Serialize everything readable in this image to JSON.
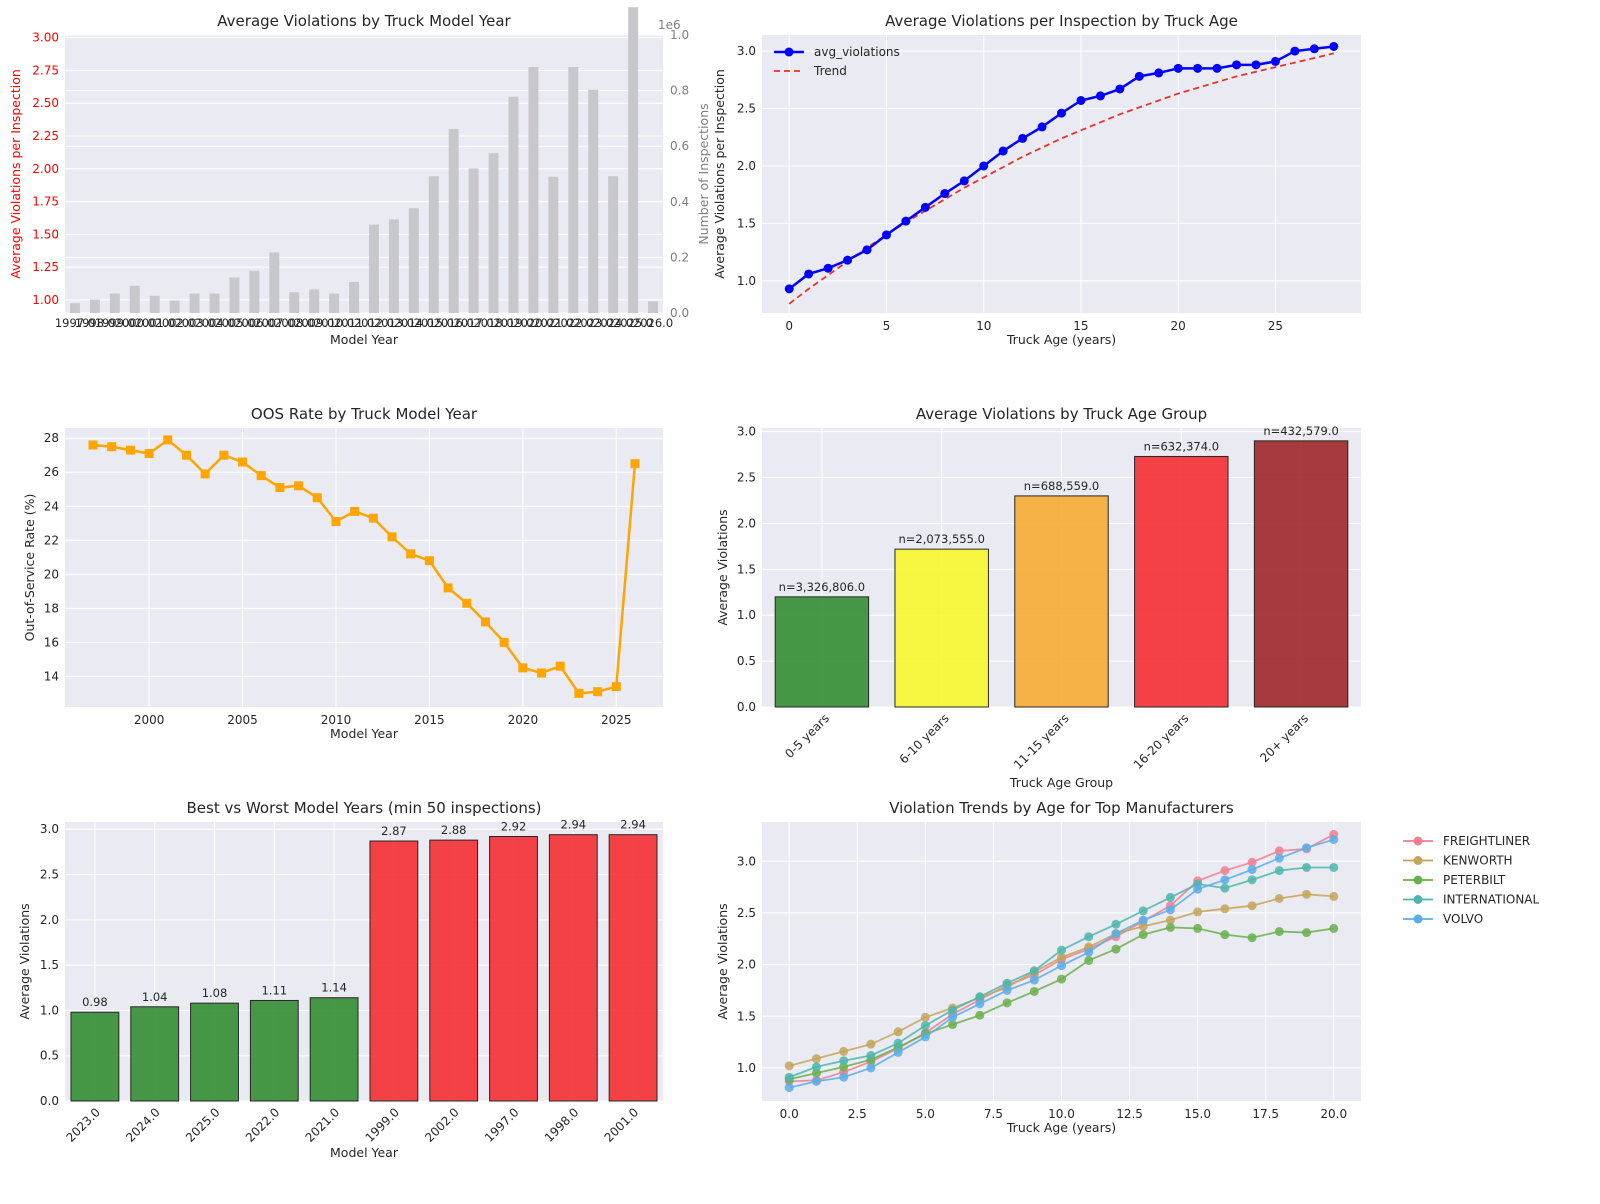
{
  "charts": [
    {
      "id": "p1",
      "title": "Average Violations by Truck Model Year",
      "xlabel": "Model Year",
      "ylabel": "Average Violations per Inspection",
      "ylabel2": "Number of Inspections",
      "offset2": "1e6"
    },
    {
      "id": "p2",
      "title": "Average Violations per Inspection by Truck Age",
      "xlabel": "Truck Age (years)",
      "ylabel": "Average Violations per Inspection",
      "legend": [
        "avg_violations",
        "Trend"
      ]
    },
    {
      "id": "p3",
      "title": "OOS Rate by Truck Model Year",
      "xlabel": "Model Year",
      "ylabel": "Out-of-Service Rate (%)"
    },
    {
      "id": "p4",
      "title": "Average Violations by Truck Age Group",
      "xlabel": "Truck Age Group",
      "ylabel": "Average Violations"
    },
    {
      "id": "p5",
      "title": "Best vs Worst Model Years (min 50 inspections)",
      "xlabel": "Model Year",
      "ylabel": "Average Violations"
    },
    {
      "id": "p6",
      "title": "Violation Trends by Age for Top Manufacturers",
      "xlabel": "Truck Age (years)",
      "ylabel": "Average Violations"
    }
  ],
  "chart_data": [
    {
      "type": "bar",
      "title": "Average Violations by Truck Model Year",
      "xlabel": "Model Year",
      "ylabel": "Average Violations per Inspection",
      "ylabel2": "Number of Inspections",
      "categories": [
        "1997.0",
        "1998.0",
        "1999.0",
        "2000.0",
        "2001.0",
        "2002.0",
        "2003.0",
        "2004.0",
        "2005.0",
        "2006.0",
        "2007.0",
        "2008.0",
        "2009.0",
        "2010.0",
        "2011.0",
        "2012.0",
        "2013.0",
        "2014.0",
        "2015.0",
        "2016.0",
        "2017.0",
        "2018.0",
        "2019.0",
        "2020.0",
        "2021.0",
        "2022.0",
        "2023.0",
        "2024.0",
        "2025.0",
        "2026.0"
      ],
      "series": [
        {
          "name": "Number of Inspections",
          "axis": "right",
          "values": [
            35000,
            48000,
            70000,
            98000,
            62000,
            45000,
            70000,
            70000,
            128000,
            152000,
            218000,
            75000,
            85000,
            70000,
            112000,
            318000,
            337000,
            377000,
            492000,
            662000,
            520000,
            575000,
            778000,
            885000,
            490000,
            885000,
            803000,
            492000,
            1100000,
            42000
          ]
        }
      ],
      "ylim": [
        0.9,
        3.02
      ],
      "ylim2": [
        0,
        1.0
      ],
      "yticks": [
        1.0,
        1.25,
        1.5,
        1.75,
        2.0,
        2.25,
        2.5,
        2.75,
        3.0
      ],
      "yticks2": [
        0.0,
        0.2,
        0.4,
        0.6,
        0.8,
        1.0
      ],
      "colors": {
        "left_axis": "#ff0000",
        "bars": "#c8c8cc",
        "right_axis": "#808080"
      }
    },
    {
      "type": "line",
      "title": "Average Violations per Inspection by Truck Age",
      "xlabel": "Truck Age (years)",
      "ylabel": "Average Violations per Inspection",
      "x": [
        0,
        1,
        2,
        3,
        4,
        5,
        6,
        7,
        8,
        9,
        10,
        11,
        12,
        13,
        14,
        15,
        16,
        17,
        18,
        19,
        20,
        21,
        22,
        23,
        24,
        25,
        26,
        27,
        28
      ],
      "series": [
        {
          "name": "avg_violations",
          "values": [
            0.93,
            1.06,
            1.11,
            1.18,
            1.27,
            1.4,
            1.52,
            1.64,
            1.76,
            1.87,
            2.0,
            2.13,
            2.24,
            2.34,
            2.46,
            2.57,
            2.61,
            2.67,
            2.78,
            2.81,
            2.85,
            2.85,
            2.85,
            2.88,
            2.88,
            2.91,
            3.0,
            3.02,
            3.04
          ],
          "color": "#0000ff",
          "marker": "circle"
        },
        {
          "name": "Trend",
          "values": [
            0.8,
            0.93,
            1.05,
            1.17,
            1.29,
            1.4,
            1.51,
            1.61,
            1.71,
            1.81,
            1.9,
            1.99,
            2.08,
            2.16,
            2.24,
            2.31,
            2.38,
            2.45,
            2.51,
            2.57,
            2.63,
            2.68,
            2.73,
            2.78,
            2.82,
            2.86,
            2.9,
            2.94,
            2.98
          ],
          "color": "#e8322b",
          "style": "dashed"
        }
      ],
      "xlim": [
        -1.4,
        29.4
      ],
      "ylim": [
        0.72,
        3.14
      ],
      "xticks": [
        0,
        5,
        10,
        15,
        20,
        25
      ],
      "yticks": [
        1.0,
        1.5,
        2.0,
        2.5,
        3.0
      ],
      "legend": "top-left"
    },
    {
      "type": "line",
      "title": "OOS Rate by Truck Model Year",
      "xlabel": "Model Year",
      "ylabel": "Out-of-Service Rate (%)",
      "x": [
        1997,
        1998,
        1999,
        2000,
        2001,
        2002,
        2003,
        2004,
        2005,
        2006,
        2007,
        2008,
        2009,
        2010,
        2011,
        2012,
        2013,
        2014,
        2015,
        2016,
        2017,
        2018,
        2019,
        2020,
        2021,
        2022,
        2023,
        2024,
        2025,
        2026
      ],
      "series": [
        {
          "name": "OOS Rate",
          "values": [
            27.6,
            27.5,
            27.3,
            27.1,
            27.9,
            27.0,
            25.9,
            27.0,
            26.6,
            25.8,
            25.1,
            25.2,
            24.5,
            23.1,
            23.7,
            23.3,
            22.2,
            21.2,
            20.8,
            19.2,
            18.3,
            17.2,
            16.0,
            14.5,
            14.2,
            14.6,
            13.0,
            13.1,
            13.4,
            26.5
          ],
          "color": "#ffa500",
          "marker": "square"
        }
      ],
      "xlim": [
        1995.5,
        2027.5
      ],
      "ylim": [
        12.2,
        28.6
      ],
      "xticks": [
        2000,
        2005,
        2010,
        2015,
        2020,
        2025
      ],
      "yticks": [
        14,
        16,
        18,
        20,
        22,
        24,
        26,
        28
      ]
    },
    {
      "type": "bar",
      "title": "Average Violations by Truck Age Group",
      "xlabel": "Truck Age Group",
      "ylabel": "Average Violations",
      "categories": [
        "0-5 years",
        "6-10 years",
        "11-15 years",
        "16-20 years",
        "20+ years"
      ],
      "values": [
        1.2,
        1.72,
        2.3,
        2.73,
        2.9
      ],
      "data_labels": [
        "n=3,326,806.0",
        "n=2,073,555.0",
        "n=688,559.0",
        "n=632,374.0",
        "n=432,579.0"
      ],
      "colors": [
        "#2e8b2e",
        "#f7f728",
        "#f5aa2d",
        "#f5292e",
        "#9b2222"
      ],
      "ylim": [
        0,
        3.04
      ],
      "yticks": [
        0.0,
        0.5,
        1.0,
        1.5,
        2.0,
        2.5,
        3.0
      ]
    },
    {
      "type": "bar",
      "title": "Best vs Worst Model Years (min 50 inspections)",
      "xlabel": "Model Year",
      "ylabel": "Average Violations",
      "categories": [
        "2023.0",
        "2024.0",
        "2025.0",
        "2022.0",
        "2021.0",
        "1999.0",
        "2002.0",
        "1997.0",
        "1998.0",
        "2001.0"
      ],
      "values": [
        0.98,
        1.04,
        1.08,
        1.11,
        1.14,
        2.87,
        2.88,
        2.92,
        2.94,
        2.94
      ],
      "data_labels": [
        "0.98",
        "1.04",
        "1.08",
        "1.11",
        "1.14",
        "2.87",
        "2.88",
        "2.92",
        "2.94",
        "2.94"
      ],
      "colors": [
        "#2e8b2e",
        "#2e8b2e",
        "#2e8b2e",
        "#2e8b2e",
        "#2e8b2e",
        "#f5292e",
        "#f5292e",
        "#f5292e",
        "#f5292e",
        "#f5292e"
      ],
      "ylim": [
        0,
        3.08
      ],
      "yticks": [
        0.0,
        0.5,
        1.0,
        1.5,
        2.0,
        2.5,
        3.0
      ]
    },
    {
      "type": "line",
      "title": "Violation Trends by Age for Top Manufacturers",
      "xlabel": "Truck Age (years)",
      "ylabel": "Average Violations",
      "x": [
        0,
        1,
        2,
        3,
        4,
        5,
        6,
        7,
        8,
        9,
        10,
        11,
        12,
        13,
        14,
        15,
        16,
        17,
        18,
        19,
        20
      ],
      "series": [
        {
          "name": "FREIGHTLINER",
          "color": "#f07f8f",
          "values": [
            0.87,
            0.88,
            0.96,
            1.06,
            1.19,
            1.34,
            1.52,
            1.66,
            1.8,
            1.9,
            2.05,
            2.15,
            2.27,
            2.42,
            2.57,
            2.81,
            2.91,
            2.99,
            3.1,
            3.12,
            3.26
          ]
        },
        {
          "name": "KENWORTH",
          "color": "#c4a45a",
          "values": [
            1.02,
            1.09,
            1.16,
            1.23,
            1.35,
            1.49,
            1.58,
            1.68,
            1.78,
            1.93,
            2.07,
            2.17,
            2.3,
            2.37,
            2.43,
            2.51,
            2.54,
            2.57,
            2.64,
            2.68,
            2.66
          ]
        },
        {
          "name": "PETERBILT",
          "color": "#6ab04c",
          "values": [
            0.89,
            0.95,
            1.01,
            1.08,
            1.2,
            1.33,
            1.42,
            1.51,
            1.63,
            1.74,
            1.86,
            2.04,
            2.15,
            2.29,
            2.36,
            2.35,
            2.29,
            2.26,
            2.32,
            2.31,
            2.35
          ]
        },
        {
          "name": "INTERNATIONAL",
          "color": "#4db6ac",
          "values": [
            0.91,
            1.01,
            1.07,
            1.12,
            1.24,
            1.41,
            1.56,
            1.69,
            1.82,
            1.94,
            2.14,
            2.27,
            2.39,
            2.52,
            2.65,
            2.78,
            2.74,
            2.82,
            2.91,
            2.94,
            2.94
          ]
        },
        {
          "name": "VOLVO",
          "color": "#5aaee8",
          "values": [
            0.81,
            0.87,
            0.91,
            1.0,
            1.15,
            1.3,
            1.49,
            1.62,
            1.75,
            1.85,
            1.99,
            2.12,
            2.3,
            2.43,
            2.53,
            2.73,
            2.82,
            2.92,
            3.03,
            3.13,
            3.21
          ]
        }
      ],
      "xlim": [
        -1.0,
        21.0
      ],
      "ylim": [
        0.68,
        3.38
      ],
      "xticks": [
        0.0,
        2.5,
        5.0,
        7.5,
        10.0,
        12.5,
        15.0,
        17.5,
        20.0
      ],
      "yticks": [
        1.0,
        1.5,
        2.0,
        2.5,
        3.0
      ],
      "legend": "outside-right"
    }
  ]
}
